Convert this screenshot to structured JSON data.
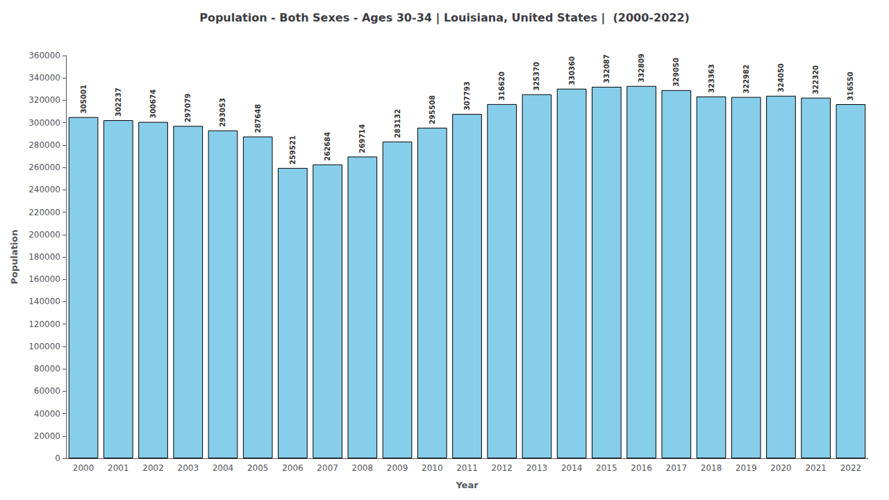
{
  "chart_data": {
    "type": "bar",
    "title": "Population - Both Sexes - Ages 30-34 | Louisiana, United States |  (2000-2022)",
    "xlabel": "Year",
    "ylabel": "Population",
    "categories": [
      "2000",
      "2001",
      "2002",
      "2003",
      "2004",
      "2005",
      "2006",
      "2007",
      "2008",
      "2009",
      "2010",
      "2011",
      "2012",
      "2013",
      "2014",
      "2015",
      "2016",
      "2017",
      "2018",
      "2019",
      "2020",
      "2021",
      "2022"
    ],
    "values": [
      305001,
      302237,
      300674,
      297079,
      293053,
      287648,
      259521,
      262684,
      269714,
      283132,
      295508,
      307793,
      316620,
      325370,
      330360,
      332087,
      332809,
      329050,
      323363,
      322982,
      324050,
      322320,
      316550
    ],
    "color": "#87CEEB",
    "ylim": [
      0,
      360000
    ],
    "yticks": [
      0,
      20000,
      40000,
      60000,
      80000,
      100000,
      120000,
      140000,
      160000,
      180000,
      200000,
      220000,
      240000,
      260000,
      280000,
      300000,
      320000,
      340000,
      360000
    ],
    "grid": false,
    "data_labels": true
  }
}
